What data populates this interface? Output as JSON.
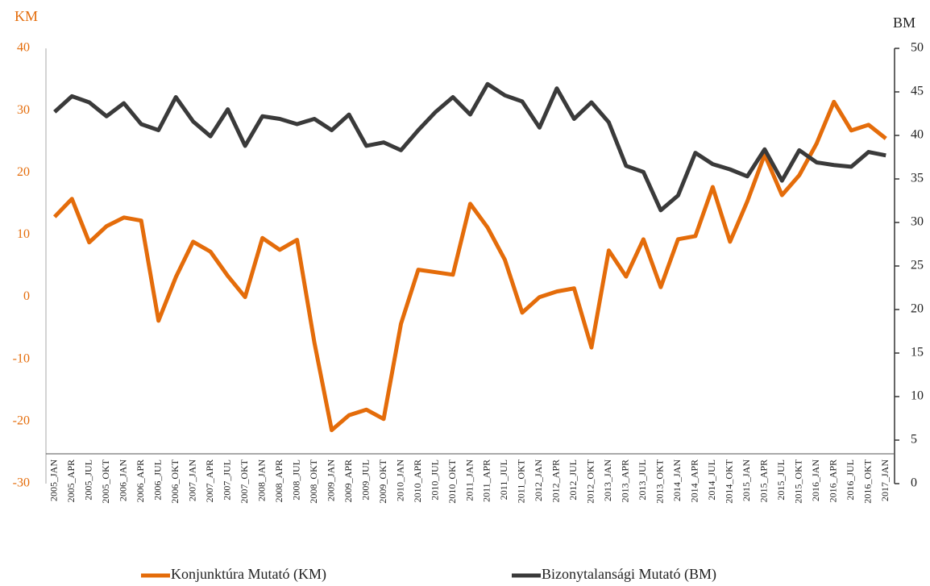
{
  "chart_data": {
    "type": "line",
    "ylabel": "KM",
    "y2label": "BM",
    "categories": [
      "2005_JAN",
      "2005_APR",
      "2005_JUL",
      "2005_OKT",
      "2006_JAN",
      "2006_APR",
      "2006_JUL",
      "2006_OKT",
      "2007_JAN",
      "2007_APR",
      "2007_JUL",
      "2007_OKT",
      "2008_JAN",
      "2008_APR",
      "2008_JUL",
      "2008_OKT",
      "2009_JAN",
      "2009_APR",
      "2009_JUL",
      "2009_OKT",
      "2010_JAN",
      "2010_APR",
      "2010_JUL",
      "2010_OKT",
      "2011_JAN",
      "2011_APR",
      "2011_JUL",
      "2011_OKT",
      "2012_JAN",
      "2012_APR",
      "2012_JUL",
      "2012_OKT",
      "2013_JAN",
      "2013_APR",
      "2013_JUL",
      "2013_OKT",
      "2014_JAN",
      "2014_APR",
      "2014_JUL",
      "2014_OKT",
      "2015_JAN",
      "2015_APR",
      "2015_JUL",
      "2015_OKT",
      "2016_JAN",
      "2016_APR",
      "2016_JUL",
      "2016_OKT",
      "2017_JAN"
    ],
    "series": [
      {
        "name": "Konjunktúra Mutató (KM)",
        "color": "#e46c0a",
        "axis": "y",
        "values": [
          12.9,
          15.8,
          8.8,
          11.4,
          12.8,
          12.3,
          -3.8,
          3.2,
          8.9,
          7.3,
          3.4,
          0,
          9.5,
          7.6,
          9.2,
          -7.3,
          -21.4,
          -19,
          -18.1,
          -19.6,
          -4.3,
          4.4,
          4,
          3.6,
          15,
          11.2,
          6,
          -2.5,
          0,
          0.9,
          1.4,
          -8.1,
          7.5,
          3.3,
          9.3,
          1.6,
          9.3,
          9.8,
          17.7,
          8.9,
          15.4,
          22.9,
          16.4,
          19.6,
          24.7,
          31.4,
          26.8,
          27.7,
          25.5
        ]
      },
      {
        "name": "Bizonytalansági Mutató (BM)",
        "color": "#3a3a3a",
        "axis": "y2",
        "values": [
          42.7,
          44.5,
          43.8,
          42.2,
          43.7,
          41.3,
          40.6,
          44.4,
          41.6,
          39.9,
          43,
          38.8,
          42.2,
          41.9,
          41.3,
          41.9,
          40.6,
          42.4,
          38.8,
          39.2,
          38.3,
          40.6,
          42.7,
          44.4,
          42.4,
          45.9,
          44.6,
          43.9,
          40.9,
          45.4,
          41.9,
          43.8,
          41.5,
          36.5,
          35.8,
          31.4,
          33.1,
          38,
          36.7,
          36.1,
          35.3,
          38.4,
          34.8,
          38.3,
          36.9,
          36.6,
          36.4,
          38.1,
          37.7
        ]
      }
    ],
    "ylim": [
      -30,
      40
    ],
    "yticks": [
      -30,
      -20,
      -10,
      0,
      10,
      20,
      30,
      40
    ],
    "y2lim": [
      0,
      50
    ],
    "y2ticks": [
      0,
      5,
      10,
      15,
      20,
      25,
      30,
      35,
      40,
      45,
      50
    ],
    "grid": false
  }
}
